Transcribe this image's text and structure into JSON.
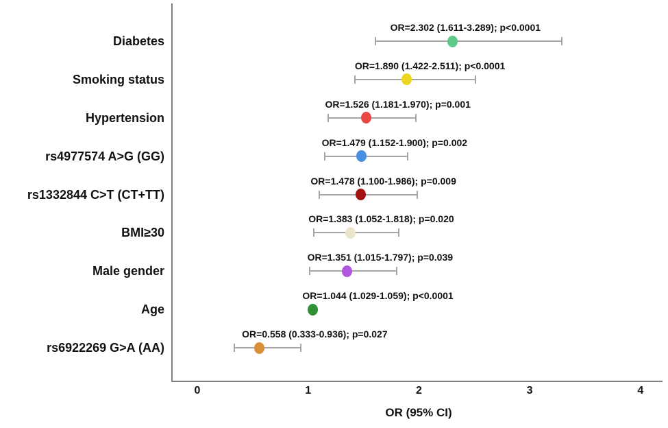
{
  "figure": {
    "background": "#ffffff",
    "text_color": "#111111",
    "axis_color": "#7f7f7f",
    "error_bar_color": "#a6a6a6"
  },
  "chart_data": {
    "type": "scatter",
    "subtype": "forest-plot",
    "title": "",
    "xlabel": "OR (95% CI)",
    "ylabel": "",
    "x_ticks": [
      "0",
      "1",
      "2",
      "3",
      "4"
    ],
    "x_tick_values": [
      0,
      1,
      2,
      3,
      4
    ],
    "xlim": [
      -0.23,
      4.2
    ],
    "grid": false,
    "legend": "none",
    "rows": [
      {
        "label": "Diabetes",
        "or": 2.302,
        "ci_low": 1.611,
        "ci_high": 3.289,
        "p": "p<0.0001",
        "annotation": "OR=2.302 (1.611-3.289); p<0.0001",
        "color": "#5dc98b",
        "annotation_center_or": 2.42
      },
      {
        "label": "Smoking status",
        "or": 1.89,
        "ci_low": 1.422,
        "ci_high": 2.511,
        "p": "p<0.0001",
        "annotation": "OR=1.890 (1.422-2.511); p<0.0001",
        "color": "#ecd41f",
        "annotation_center_or": 2.1
      },
      {
        "label": "Hypertension",
        "or": 1.526,
        "ci_low": 1.181,
        "ci_high": 1.97,
        "p": "p=0.001",
        "annotation": "OR=1.526 (1.181-1.970); p=0.001",
        "color": "#eb4747",
        "annotation_center_or": 1.81
      },
      {
        "label": "rs4977574 A>G (GG)",
        "or": 1.479,
        "ci_low": 1.152,
        "ci_high": 1.9,
        "p": "p=0.002",
        "annotation": "OR=1.479 (1.152-1.900); p=0.002",
        "color": "#4a90e2",
        "annotation_center_or": 1.78
      },
      {
        "label": "rs1332844 C>T (CT+TT)",
        "or": 1.478,
        "ci_low": 1.1,
        "ci_high": 1.986,
        "p": "p=0.009",
        "annotation": "OR=1.478 (1.100-1.986); p=0.009",
        "color": "#a31212",
        "annotation_center_or": 1.68
      },
      {
        "label": "BMI≥30",
        "or": 1.383,
        "ci_low": 1.052,
        "ci_high": 1.818,
        "p": "p=0.020",
        "annotation": "OR=1.383 (1.052-1.818); p=0.020",
        "color": "#ece5c9",
        "annotation_center_or": 1.66
      },
      {
        "label": "Male gender",
        "or": 1.351,
        "ci_low": 1.015,
        "ci_high": 1.797,
        "p": "p=0.039",
        "annotation": "OR=1.351 (1.015-1.797); p=0.039",
        "color": "#b057e0",
        "annotation_center_or": 1.65
      },
      {
        "label": "Age",
        "or": 1.044,
        "ci_low": 1.029,
        "ci_high": 1.059,
        "p": "p<0.0001",
        "annotation": "OR=1.044 (1.029-1.059); p<0.0001",
        "color": "#2f9135",
        "annotation_center_or": 1.63
      },
      {
        "label": "rs6922269 G>A (AA)",
        "or": 0.558,
        "ci_low": 0.333,
        "ci_high": 0.936,
        "p": "p=0.027",
        "annotation": "OR=0.558 (0.333-0.936); p=0.027",
        "color": "#d98f35",
        "annotation_center_or": 1.06
      }
    ]
  }
}
